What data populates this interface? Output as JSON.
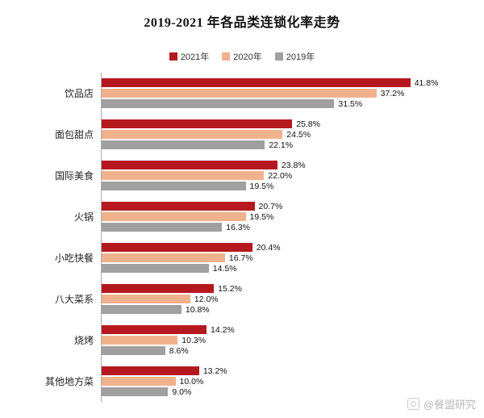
{
  "watermark": {
    "label": "@餐盟研究"
  },
  "chart_data": {
    "type": "bar",
    "orientation": "horizontal",
    "title": "2019-2021 年各品类连锁化率走势",
    "categories": [
      "饮品店",
      "面包甜点",
      "国际美食",
      "火锅",
      "小吃快餐",
      "八大菜系",
      "烧烤",
      "其他地方菜"
    ],
    "series": [
      {
        "name": "2021年",
        "color": "#b5191f",
        "values": [
          41.8,
          25.8,
          23.8,
          20.7,
          20.4,
          15.2,
          14.2,
          13.2
        ]
      },
      {
        "name": "2020年",
        "color": "#f0b28c",
        "values": [
          37.2,
          24.5,
          22.0,
          19.5,
          16.7,
          12.0,
          10.3,
          10.0
        ]
      },
      {
        "name": "2019年",
        "color": "#a0a0a0",
        "values": [
          31.5,
          22.1,
          19.5,
          16.3,
          14.5,
          10.8,
          8.6,
          9.0
        ]
      }
    ],
    "xlim": [
      0,
      45
    ],
    "value_suffix": "%",
    "legend_position": "top",
    "grid": false
  }
}
